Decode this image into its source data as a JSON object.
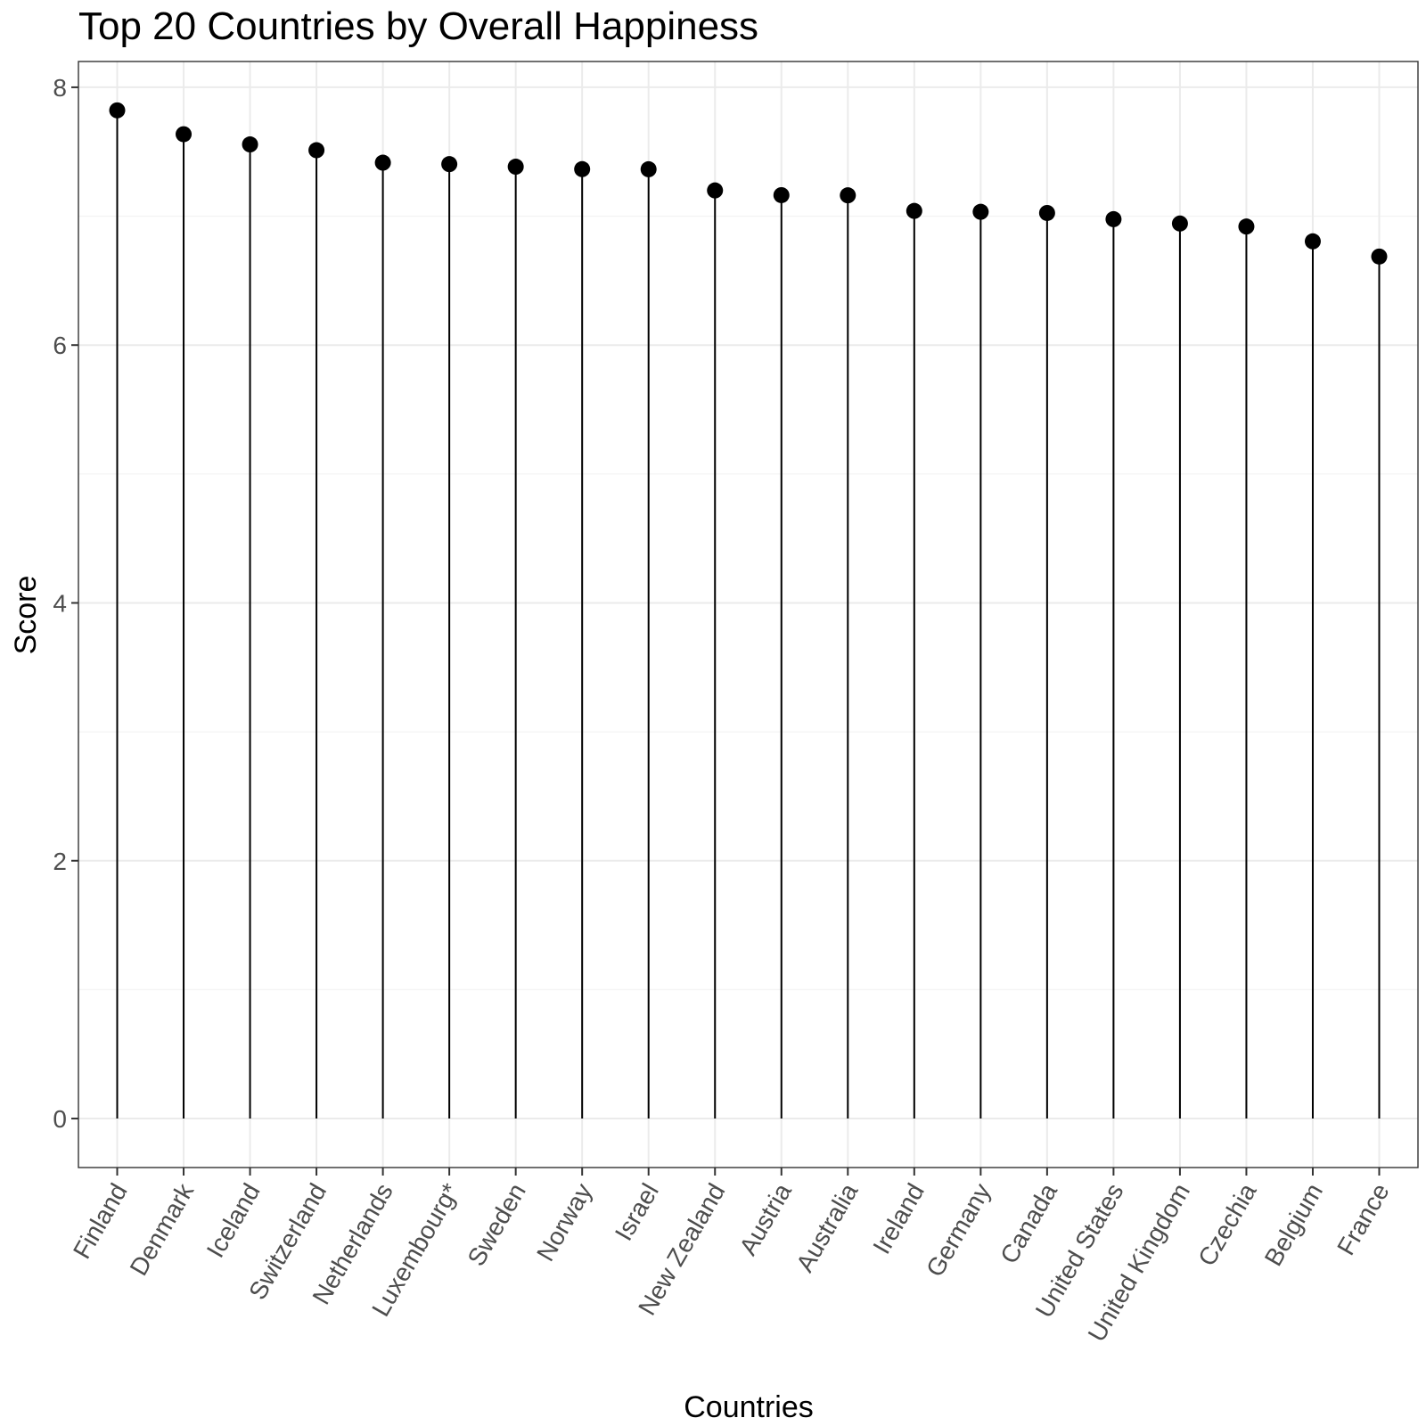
{
  "chart_data": {
    "type": "lollipop",
    "title": "Top 20 Countries by Overall Happiness",
    "xlabel": "Countries",
    "ylabel": "Score",
    "ylim": [
      -0.38,
      8.2
    ],
    "yticks": [
      0,
      2,
      4,
      6,
      8
    ],
    "y_tick_labels": [
      "0",
      "2",
      "4",
      "6",
      "8"
    ],
    "grid": true,
    "x_tick_label_rotation_deg": -60,
    "categories": [
      "Finland",
      "Denmark",
      "Iceland",
      "Switzerland",
      "Netherlands",
      "Luxembourg*",
      "Sweden",
      "Norway",
      "Israel",
      "New Zealand",
      "Austria",
      "Australia",
      "Ireland",
      "Germany",
      "Canada",
      "United States",
      "United Kingdom",
      "Czechia",
      "Belgium",
      "France"
    ],
    "values": [
      7.821,
      7.636,
      7.557,
      7.512,
      7.415,
      7.404,
      7.384,
      7.365,
      7.364,
      7.2,
      7.163,
      7.162,
      7.041,
      7.034,
      7.025,
      6.977,
      6.943,
      6.92,
      6.805,
      6.687
    ],
    "color": "#000000"
  }
}
